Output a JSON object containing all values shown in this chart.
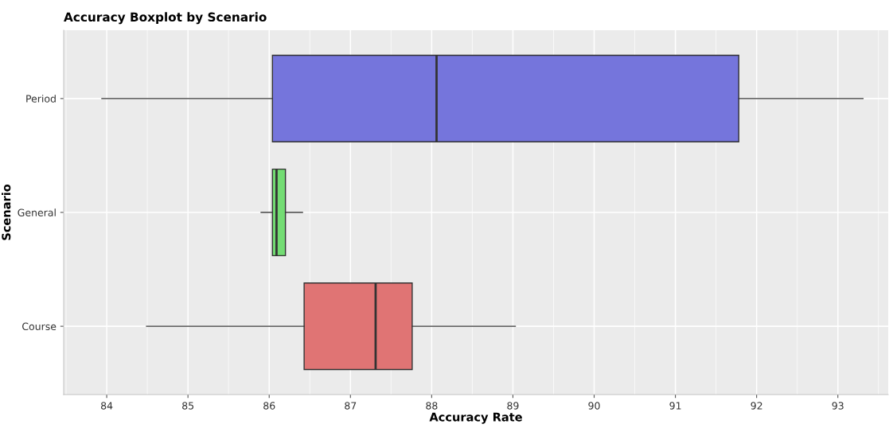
{
  "chart_data": {
    "type": "box",
    "title": "Accuracy Boxplot by Scenario",
    "xlabel": "Accuracy Rate",
    "ylabel": "Scenario",
    "orientation": "horizontal",
    "categories": [
      "Period",
      "General",
      "Course"
    ],
    "colors": [
      "#7575dc",
      "#73dc73",
      "#e07474"
    ],
    "boxes": [
      {
        "low": 83.94,
        "q1": 86.04,
        "median": 88.06,
        "q3": 91.78,
        "high": 93.31
      },
      {
        "low": 85.9,
        "q1": 86.04,
        "median": 86.09,
        "q3": 86.2,
        "high": 86.41
      },
      {
        "low": 84.49,
        "q1": 86.43,
        "median": 87.31,
        "q3": 87.76,
        "high": 89.03
      }
    ],
    "xlim": [
      83.47,
      93.62
    ],
    "xticks": [
      84,
      85,
      86,
      87,
      88,
      89,
      90,
      91,
      92,
      93
    ],
    "grid": true,
    "legend": false
  }
}
